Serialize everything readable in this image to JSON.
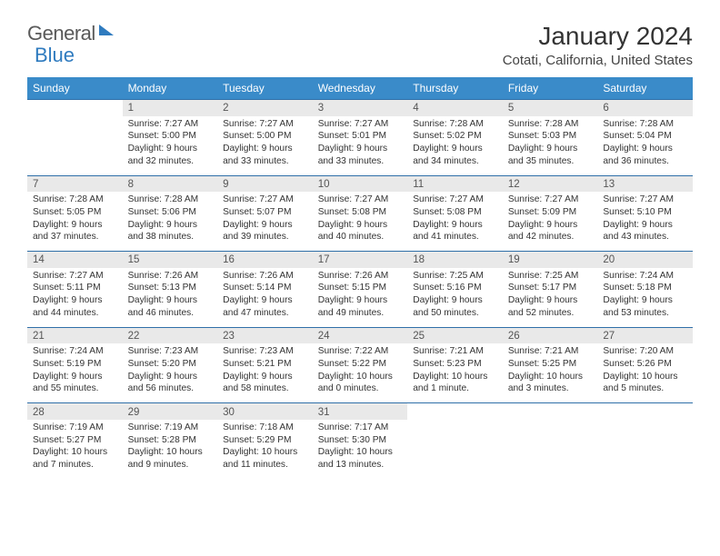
{
  "logo": {
    "text1": "General",
    "text2": "Blue"
  },
  "title": "January 2024",
  "subtitle": "Cotati, California, United States",
  "colors": {
    "header_bg": "#3a8bc9",
    "header_text": "#ffffff",
    "daynum_bg": "#e9e9e9",
    "row_border": "#2f6fa8",
    "logo_blue": "#2f7bbf"
  },
  "day_headers": [
    "Sunday",
    "Monday",
    "Tuesday",
    "Wednesday",
    "Thursday",
    "Friday",
    "Saturday"
  ],
  "weeks": [
    {
      "nums": [
        "",
        "1",
        "2",
        "3",
        "4",
        "5",
        "6"
      ],
      "info": [
        "",
        "Sunrise: 7:27 AM\nSunset: 5:00 PM\nDaylight: 9 hours and 32 minutes.",
        "Sunrise: 7:27 AM\nSunset: 5:00 PM\nDaylight: 9 hours and 33 minutes.",
        "Sunrise: 7:27 AM\nSunset: 5:01 PM\nDaylight: 9 hours and 33 minutes.",
        "Sunrise: 7:28 AM\nSunset: 5:02 PM\nDaylight: 9 hours and 34 minutes.",
        "Sunrise: 7:28 AM\nSunset: 5:03 PM\nDaylight: 9 hours and 35 minutes.",
        "Sunrise: 7:28 AM\nSunset: 5:04 PM\nDaylight: 9 hours and 36 minutes."
      ]
    },
    {
      "nums": [
        "7",
        "8",
        "9",
        "10",
        "11",
        "12",
        "13"
      ],
      "info": [
        "Sunrise: 7:28 AM\nSunset: 5:05 PM\nDaylight: 9 hours and 37 minutes.",
        "Sunrise: 7:28 AM\nSunset: 5:06 PM\nDaylight: 9 hours and 38 minutes.",
        "Sunrise: 7:27 AM\nSunset: 5:07 PM\nDaylight: 9 hours and 39 minutes.",
        "Sunrise: 7:27 AM\nSunset: 5:08 PM\nDaylight: 9 hours and 40 minutes.",
        "Sunrise: 7:27 AM\nSunset: 5:08 PM\nDaylight: 9 hours and 41 minutes.",
        "Sunrise: 7:27 AM\nSunset: 5:09 PM\nDaylight: 9 hours and 42 minutes.",
        "Sunrise: 7:27 AM\nSunset: 5:10 PM\nDaylight: 9 hours and 43 minutes."
      ]
    },
    {
      "nums": [
        "14",
        "15",
        "16",
        "17",
        "18",
        "19",
        "20"
      ],
      "info": [
        "Sunrise: 7:27 AM\nSunset: 5:11 PM\nDaylight: 9 hours and 44 minutes.",
        "Sunrise: 7:26 AM\nSunset: 5:13 PM\nDaylight: 9 hours and 46 minutes.",
        "Sunrise: 7:26 AM\nSunset: 5:14 PM\nDaylight: 9 hours and 47 minutes.",
        "Sunrise: 7:26 AM\nSunset: 5:15 PM\nDaylight: 9 hours and 49 minutes.",
        "Sunrise: 7:25 AM\nSunset: 5:16 PM\nDaylight: 9 hours and 50 minutes.",
        "Sunrise: 7:25 AM\nSunset: 5:17 PM\nDaylight: 9 hours and 52 minutes.",
        "Sunrise: 7:24 AM\nSunset: 5:18 PM\nDaylight: 9 hours and 53 minutes."
      ]
    },
    {
      "nums": [
        "21",
        "22",
        "23",
        "24",
        "25",
        "26",
        "27"
      ],
      "info": [
        "Sunrise: 7:24 AM\nSunset: 5:19 PM\nDaylight: 9 hours and 55 minutes.",
        "Sunrise: 7:23 AM\nSunset: 5:20 PM\nDaylight: 9 hours and 56 minutes.",
        "Sunrise: 7:23 AM\nSunset: 5:21 PM\nDaylight: 9 hours and 58 minutes.",
        "Sunrise: 7:22 AM\nSunset: 5:22 PM\nDaylight: 10 hours and 0 minutes.",
        "Sunrise: 7:21 AM\nSunset: 5:23 PM\nDaylight: 10 hours and 1 minute.",
        "Sunrise: 7:21 AM\nSunset: 5:25 PM\nDaylight: 10 hours and 3 minutes.",
        "Sunrise: 7:20 AM\nSunset: 5:26 PM\nDaylight: 10 hours and 5 minutes."
      ]
    },
    {
      "nums": [
        "28",
        "29",
        "30",
        "31",
        "",
        "",
        ""
      ],
      "info": [
        "Sunrise: 7:19 AM\nSunset: 5:27 PM\nDaylight: 10 hours and 7 minutes.",
        "Sunrise: 7:19 AM\nSunset: 5:28 PM\nDaylight: 10 hours and 9 minutes.",
        "Sunrise: 7:18 AM\nSunset: 5:29 PM\nDaylight: 10 hours and 11 minutes.",
        "Sunrise: 7:17 AM\nSunset: 5:30 PM\nDaylight: 10 hours and 13 minutes.",
        "",
        "",
        ""
      ]
    }
  ]
}
